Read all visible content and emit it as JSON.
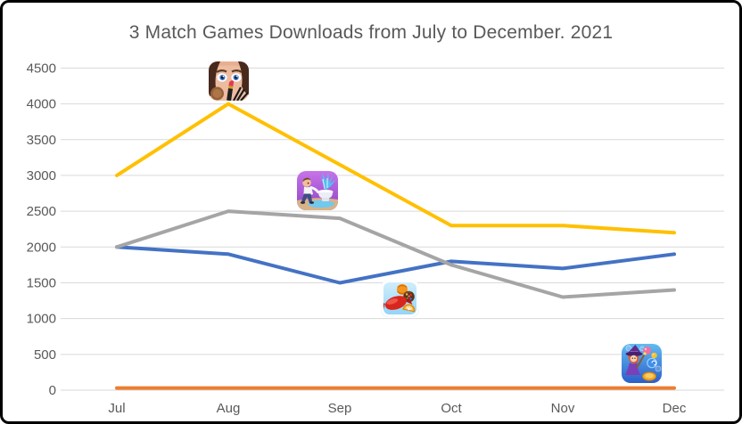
{
  "title": "3 Match Games Downloads from July to December. 2021",
  "chart_data": {
    "type": "line",
    "categories": [
      "Jul",
      "Aug",
      "Sep",
      "Oct",
      "Nov",
      "Dec"
    ],
    "series": [
      {
        "name": "blue-line",
        "icon": "candy-crush-icon",
        "color": "#4472C4",
        "values": [
          2000,
          1900,
          1500,
          1800,
          1700,
          1900
        ]
      },
      {
        "name": "orange-line",
        "icon": "bubble-witch-icon",
        "color": "#ED7D31",
        "values": [
          30,
          30,
          30,
          30,
          30,
          30
        ]
      },
      {
        "name": "gray-line",
        "icon": "plumber-toilet-game-icon",
        "color": "#A5A5A5",
        "values": [
          2000,
          2500,
          2400,
          1750,
          1300,
          1400
        ]
      },
      {
        "name": "gold-line",
        "icon": "makeup-game-icon",
        "color": "#FFC000",
        "values": [
          3000,
          4000,
          3150,
          2300,
          2300,
          2200
        ]
      }
    ],
    "title": "3 Match Games Downloads from July to December. 2021",
    "xlabel": "",
    "ylabel": "",
    "ylim": [
      0,
      4500
    ],
    "yticks": [
      0,
      500,
      1000,
      1500,
      2000,
      2500,
      3000,
      3500,
      4000,
      4500
    ],
    "grid": true,
    "legend_position": "none (game app icons placed on chart instead of a legend)"
  },
  "icons": [
    {
      "name": "makeup-game-icon",
      "depicts": "makeover game app icon: face with eyes, lipstick and makeup brushes",
      "marks_series": "gold-line",
      "near": "Aug peak 4000"
    },
    {
      "name": "plumber-toilet-game-icon",
      "depicts": "puzzle-ad game app icon: man with toilet spraying water",
      "marks_series": "gray-line",
      "near": "Sep"
    },
    {
      "name": "candy-crush-icon",
      "depicts": "match-3 candy game app icon: wrapped red candy with sweets",
      "marks_series": "blue-line",
      "near": "Sep-Oct"
    },
    {
      "name": "bubble-witch-icon",
      "depicts": "bubble shooter game app icon: witch with hat and bubbles",
      "marks_series": "orange-line",
      "near": "Dec"
    }
  ],
  "colors": {
    "title_text": "#595959",
    "axis_text": "#595959",
    "gridline": "#D9D9D9",
    "background": "#FFFFFF",
    "frame_border": "#000000"
  }
}
